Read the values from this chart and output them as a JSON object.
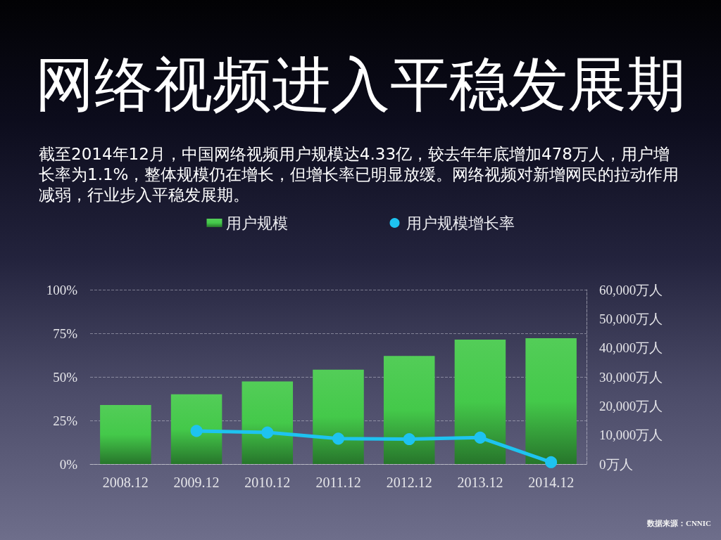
{
  "chart_data": {
    "type": "bar",
    "title": "网络视频进入平稳发展期",
    "subtitle": "截至2014年12月，中国网络视频用户规模达4.33亿，较去年年底增加478万人，用户增长率为1.1%，整体规模仍在增长，但增长率已明显放缓。网络视频对新增网民的拉动作用减弱，行业步入平稳发展期。",
    "annotations": [
      "数据来源：CNNIC"
    ],
    "categories": [
      "2008.12",
      "2009.12",
      "2010.12",
      "2011.12",
      "2012.12",
      "2013.12",
      "2014.12"
    ],
    "series": [
      {
        "name": "用户规模",
        "axis": "y2",
        "color": "#44c94a",
        "values": [
          20300,
          24000,
          28400,
          32500,
          37200,
          42800,
          43300
        ]
      },
      {
        "name": "用户规模增长率",
        "type": "line",
        "color": "#1ec3f0",
        "values": [
          null,
          19.0,
          18.1,
          14.6,
          14.3,
          15.2,
          1.1
        ]
      }
    ],
    "ylim": [
      0,
      100
    ],
    "yticks": [
      {
        "value": 0,
        "label": "0%"
      },
      {
        "value": 25,
        "label": "25%"
      },
      {
        "value": 50,
        "label": "50%"
      },
      {
        "value": 75,
        "label": "75%"
      },
      {
        "value": 100,
        "label": "100%"
      }
    ],
    "y2lim": [
      0,
      60000
    ],
    "y2ticks": [
      {
        "value": 0,
        "label": "0万人"
      },
      {
        "value": 10000,
        "label": "10,000万人"
      },
      {
        "value": 20000,
        "label": "20,000万人"
      },
      {
        "value": 30000,
        "label": "30,000万人"
      },
      {
        "value": 40000,
        "label": "40,000万人"
      },
      {
        "value": 50000,
        "label": "50,000万人"
      },
      {
        "value": 60000,
        "label": "60,000万人"
      }
    ],
    "grid": "y",
    "legend": "top",
    "marker": "circle"
  }
}
